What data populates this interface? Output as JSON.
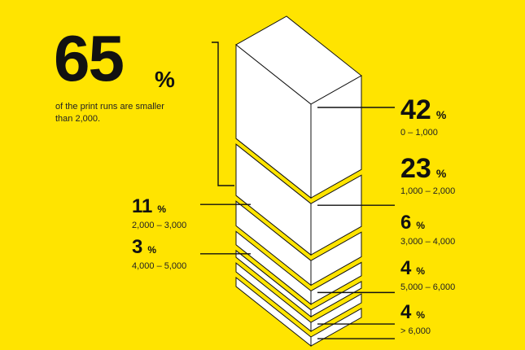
{
  "headline": {
    "value": "65",
    "unit": "%",
    "description": "of the print runs are smaller than 2,000."
  },
  "colors": {
    "background": "#FFE400",
    "block_face": "#FFFFFF",
    "outline": "#111111"
  },
  "chart_data": {
    "type": "stacked-block",
    "unit": "%",
    "segments": [
      {
        "value": 42,
        "range": "0 – 1,000"
      },
      {
        "value": 23,
        "range": "1,000 – 2,000"
      },
      {
        "value": 11,
        "range": "2,000 – 3,000"
      },
      {
        "value": 6,
        "range": "3,000 – 4,000"
      },
      {
        "value": 3,
        "range": "4,000 – 5,000"
      },
      {
        "value": 4,
        "range": "5,000 – 6,000"
      },
      {
        "value": 4,
        "range": "> 6,000"
      }
    ]
  }
}
